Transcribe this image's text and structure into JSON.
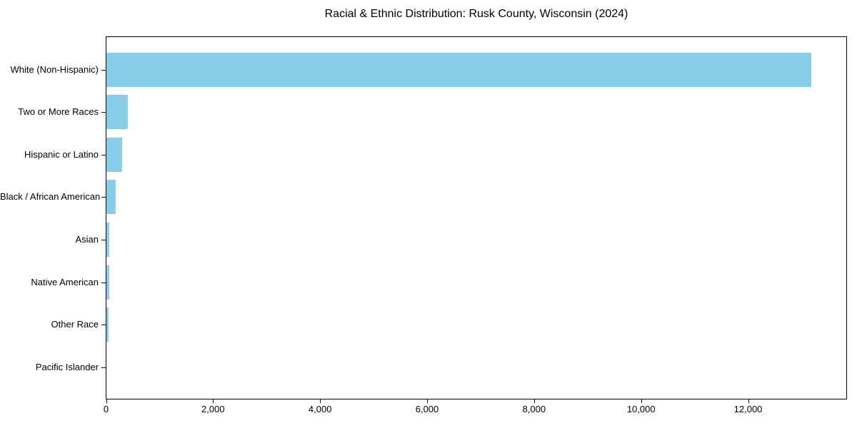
{
  "chart_data": {
    "type": "bar",
    "orientation": "horizontal",
    "title": "Racial & Ethnic Distribution: Rusk County, Wisconsin (2024)",
    "xlabel": "",
    "ylabel": "",
    "categories": [
      "White (Non-Hispanic)",
      "Two or More Races",
      "Hispanic or Latino",
      "Black / African American",
      "Asian",
      "Native American",
      "Other Race",
      "Pacific Islander"
    ],
    "values": [
      13170,
      400,
      300,
      175,
      50,
      55,
      35,
      0
    ],
    "xlim": [
      0,
      13828
    ],
    "x_ticks": [
      0,
      2000,
      4000,
      6000,
      8000,
      10000,
      12000
    ],
    "x_tick_labels": [
      "0",
      "2,000",
      "4,000",
      "6,000",
      "8,000",
      "10,000",
      "12,000"
    ],
    "bar_color": "#87CEEB",
    "axis_color": "#000000",
    "grid": false,
    "legend": "none"
  }
}
